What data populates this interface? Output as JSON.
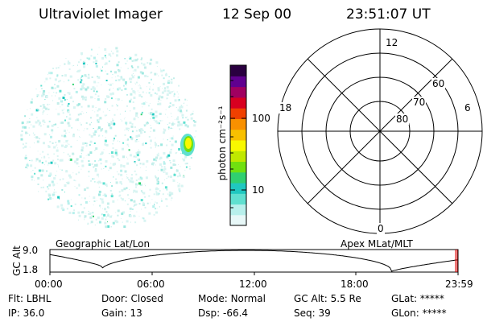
{
  "header": {
    "instrument": "Ultraviolet Imager",
    "date": "12 Sep 00",
    "time": "23:51:07 UT"
  },
  "image_panel": {
    "label": "Geographic Lat/Lon"
  },
  "colorbar": {
    "unit_label": "photon cm⁻²s⁻¹",
    "scale": "log",
    "ticks": [
      "10",
      "100"
    ],
    "colors": [
      "#e8f8f8",
      "#b8f0ec",
      "#60e0d0",
      "#20c8c0",
      "#30d070",
      "#70e010",
      "#c0e800",
      "#f8f800",
      "#f8c000",
      "#f89000",
      "#f04000",
      "#d80020",
      "#a00060",
      "#600090",
      "#2a0040"
    ]
  },
  "polar_plot": {
    "label": "Apex MLat/MLT",
    "mlt_labels": [
      "12",
      "18",
      "6",
      "0"
    ],
    "mlat_labels": [
      "60",
      "70",
      "80"
    ]
  },
  "gc_alt_plot": {
    "ylabel": "GC Alt",
    "yticks": [
      "9.0",
      "1.8"
    ],
    "xticks": [
      "00:00",
      "06:00",
      "12:00",
      "18:00",
      "23:59"
    ],
    "marker_time": "23:51:07",
    "marker_color": "#e00000"
  },
  "status": {
    "row1": [
      {
        "label": "Flt:",
        "value": "LBHL"
      },
      {
        "label": "Door:",
        "value": "Closed"
      },
      {
        "label": "Mode:",
        "value": "Normal"
      },
      {
        "label": "GC Alt:",
        "value": "5.5 Re"
      },
      {
        "label": "GLat:",
        "value": "*****"
      }
    ],
    "row2": [
      {
        "label": "IP:",
        "value": "36.0"
      },
      {
        "label": "Gain:",
        "value": "13"
      },
      {
        "label": "Dsp:",
        "value": "-66.4"
      },
      {
        "label": "Seq:",
        "value": "39"
      },
      {
        "label": "GLon:",
        "value": "*****"
      }
    ]
  }
}
